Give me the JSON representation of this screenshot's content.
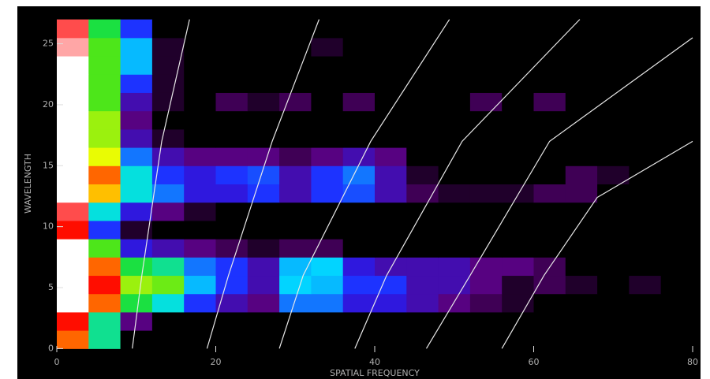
{
  "chart_data": {
    "type": "heatmap",
    "xlabel": "SPATIAL FREQUENCY",
    "ylabel": "WAVELENGTH",
    "xlim": [
      0,
      80
    ],
    "ylim": [
      -0.3,
      27.3
    ],
    "xticks": [
      0,
      20,
      40,
      60,
      80
    ],
    "yticks": [
      0,
      5,
      10,
      15,
      20,
      25
    ],
    "xbins": [
      0,
      4,
      8,
      12,
      16,
      20,
      24,
      28,
      32,
      36,
      40,
      44,
      48,
      52,
      56,
      60,
      64,
      68,
      72,
      76,
      80
    ],
    "ybins": [
      0,
      1.5,
      3,
      4.5,
      6,
      7.5,
      9,
      10.5,
      12,
      13.5,
      15,
      16.5,
      18,
      19.5,
      21,
      22.5,
      24,
      25.5,
      27
    ],
    "colormap": [
      "#000000",
      "#5a007a",
      "#2020ff",
      "#00e0ff",
      "#20e020",
      "#ffff00",
      "#ff0000",
      "#ffffff"
    ],
    "z": [
      [
        0.8,
        0.5,
        0,
        0,
        0,
        0,
        0,
        0,
        0,
        0,
        0,
        0,
        0,
        0,
        0,
        0,
        0,
        0,
        0,
        0
      ],
      [
        0.85,
        0.5,
        0.15,
        0,
        0,
        0,
        0,
        0,
        0,
        0,
        0,
        0,
        0,
        0,
        0,
        0,
        0,
        0,
        0,
        0
      ],
      [
        1,
        0.8,
        0.55,
        0.45,
        0.3,
        0.2,
        0.15,
        0.35,
        0.35,
        0.25,
        0.25,
        0.2,
        0.15,
        0.1,
        0.05,
        0,
        0,
        0,
        0,
        0
      ],
      [
        1,
        0.85,
        0.65,
        0.62,
        0.4,
        0.3,
        0.2,
        0.42,
        0.4,
        0.3,
        0.3,
        0.2,
        0.2,
        0.15,
        0.05,
        0.1,
        0.05,
        0,
        0.05,
        0
      ],
      [
        1,
        0.8,
        0.55,
        0.5,
        0.35,
        0.3,
        0.2,
        0.4,
        0.42,
        0.25,
        0.2,
        0.2,
        0.2,
        0.15,
        0.15,
        0.1,
        0,
        0,
        0,
        0
      ],
      [
        1,
        0.6,
        0.25,
        0.2,
        0.15,
        0.1,
        0.05,
        0.1,
        0.1,
        0,
        0,
        0,
        0,
        0,
        0,
        0,
        0,
        0,
        0,
        0
      ],
      [
        0.85,
        0.3,
        0.05,
        0,
        0,
        0,
        0,
        0,
        0,
        0,
        0,
        0,
        0,
        0,
        0,
        0,
        0,
        0,
        0,
        0
      ],
      [
        0.9,
        0.45,
        0.25,
        0.15,
        0.05,
        0,
        0,
        0,
        0,
        0,
        0,
        0,
        0,
        0,
        0,
        0,
        0,
        0,
        0,
        0
      ],
      [
        1,
        0.75,
        0.45,
        0.35,
        0.25,
        0.25,
        0.3,
        0.2,
        0.3,
        0.32,
        0.2,
        0.1,
        0.05,
        0.05,
        0.05,
        0.1,
        0.1,
        0,
        0,
        0
      ],
      [
        1,
        0.8,
        0.45,
        0.3,
        0.25,
        0.3,
        0.32,
        0.2,
        0.3,
        0.35,
        0.2,
        0.05,
        0,
        0,
        0,
        0,
        0.1,
        0.05,
        0,
        0
      ],
      [
        1,
        0.7,
        0.35,
        0.2,
        0.15,
        0.15,
        0.15,
        0.1,
        0.15,
        0.2,
        0.15,
        0,
        0,
        0,
        0,
        0,
        0,
        0,
        0,
        0
      ],
      [
        1,
        0.65,
        0.2,
        0.05,
        0,
        0,
        0,
        0,
        0,
        0,
        0,
        0,
        0,
        0,
        0,
        0,
        0,
        0,
        0,
        0
      ],
      [
        1,
        0.65,
        0.15,
        0,
        0,
        0,
        0,
        0,
        0,
        0,
        0,
        0,
        0,
        0,
        0,
        0,
        0,
        0,
        0,
        0
      ],
      [
        1,
        0.6,
        0.2,
        0.05,
        0,
        0.1,
        0.05,
        0.1,
        0,
        0.1,
        0,
        0,
        0,
        0.1,
        0,
        0.1,
        0,
        0,
        0,
        0
      ],
      [
        1,
        0.6,
        0.3,
        0.05,
        0,
        0,
        0,
        0,
        0,
        0,
        0,
        0,
        0,
        0,
        0,
        0,
        0,
        0,
        0,
        0
      ],
      [
        1,
        0.6,
        0.4,
        0.05,
        0,
        0,
        0,
        0,
        0,
        0,
        0,
        0,
        0,
        0,
        0,
        0,
        0,
        0,
        0,
        0
      ],
      [
        0.95,
        0.6,
        0.4,
        0.05,
        0,
        0,
        0,
        0,
        0.05,
        0,
        0,
        0,
        0,
        0,
        0,
        0,
        0,
        0,
        0,
        0
      ],
      [
        0.9,
        0.55,
        0.3,
        0,
        0,
        0,
        0,
        0,
        0,
        0,
        0,
        0,
        0,
        0,
        0,
        0,
        0,
        0,
        0,
        0
      ]
    ],
    "curve_color": "#e8e8e8",
    "curves": [
      {
        "x": [
          9.5,
          10.7,
          13.2,
          16.7
        ],
        "y": [
          0,
          6,
          17,
          27
        ]
      },
      {
        "x": [
          18.9,
          21.6,
          27.1,
          33
        ],
        "y": [
          0,
          6,
          17,
          27
        ]
      },
      {
        "x": [
          28,
          31,
          39.5,
          49.4
        ],
        "y": [
          0,
          6,
          17,
          27
        ]
      },
      {
        "x": [
          37.5,
          41.5,
          51,
          65.8
        ],
        "y": [
          0,
          6,
          17,
          27
        ]
      },
      {
        "x": [
          46.5,
          52,
          62,
          80
        ],
        "y": [
          0,
          6,
          17,
          25.5
        ]
      },
      {
        "x": [
          56,
          61.3,
          68,
          80
        ],
        "y": [
          0,
          6,
          12.4,
          17
        ]
      }
    ]
  }
}
